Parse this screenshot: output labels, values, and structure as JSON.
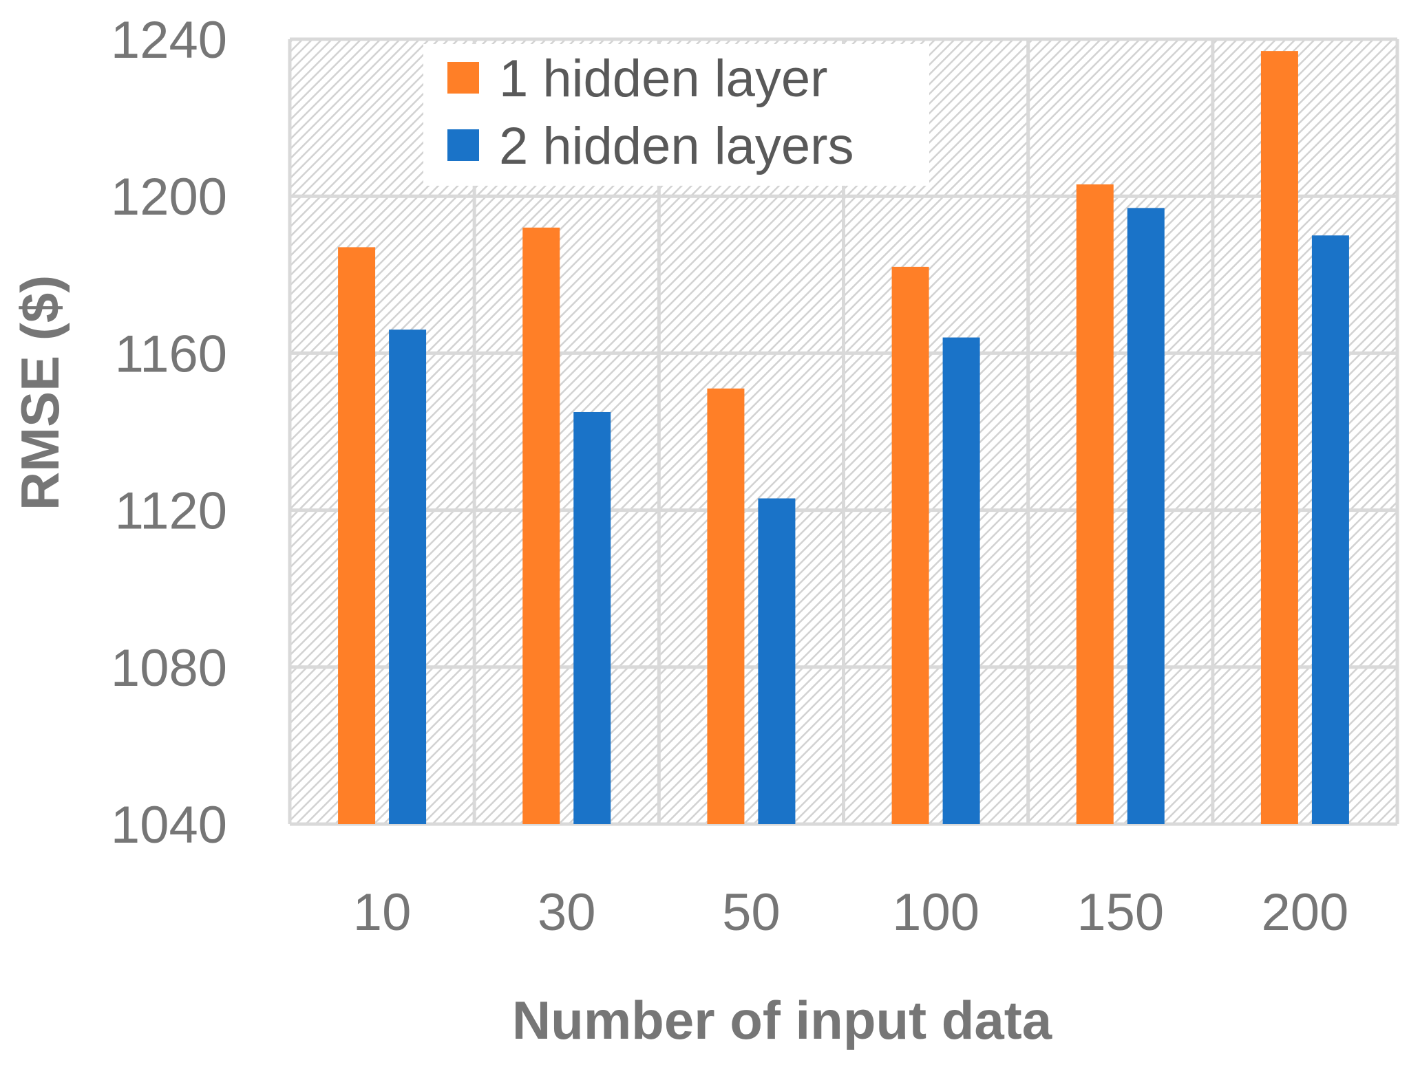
{
  "chart_data": {
    "type": "bar",
    "xlabel": "Number of input data",
    "ylabel": "RMSE ($)",
    "categories": [
      "10",
      "30",
      "50",
      "100",
      "150",
      "200"
    ],
    "ylim": [
      1040,
      1240
    ],
    "yticks": [
      "1040",
      "1080",
      "1120",
      "1160",
      "1200",
      "1240"
    ],
    "grid": true,
    "legend_position": "top-left",
    "series": [
      {
        "name": "1 hidden layer",
        "color": "#FF7F27",
        "values": [
          1187,
          1192,
          1151,
          1182,
          1203,
          1237
        ]
      },
      {
        "name": "2 hidden layers",
        "color": "#1A73C8",
        "values": [
          1166,
          1145,
          1123,
          1164,
          1197,
          1190
        ]
      }
    ]
  }
}
